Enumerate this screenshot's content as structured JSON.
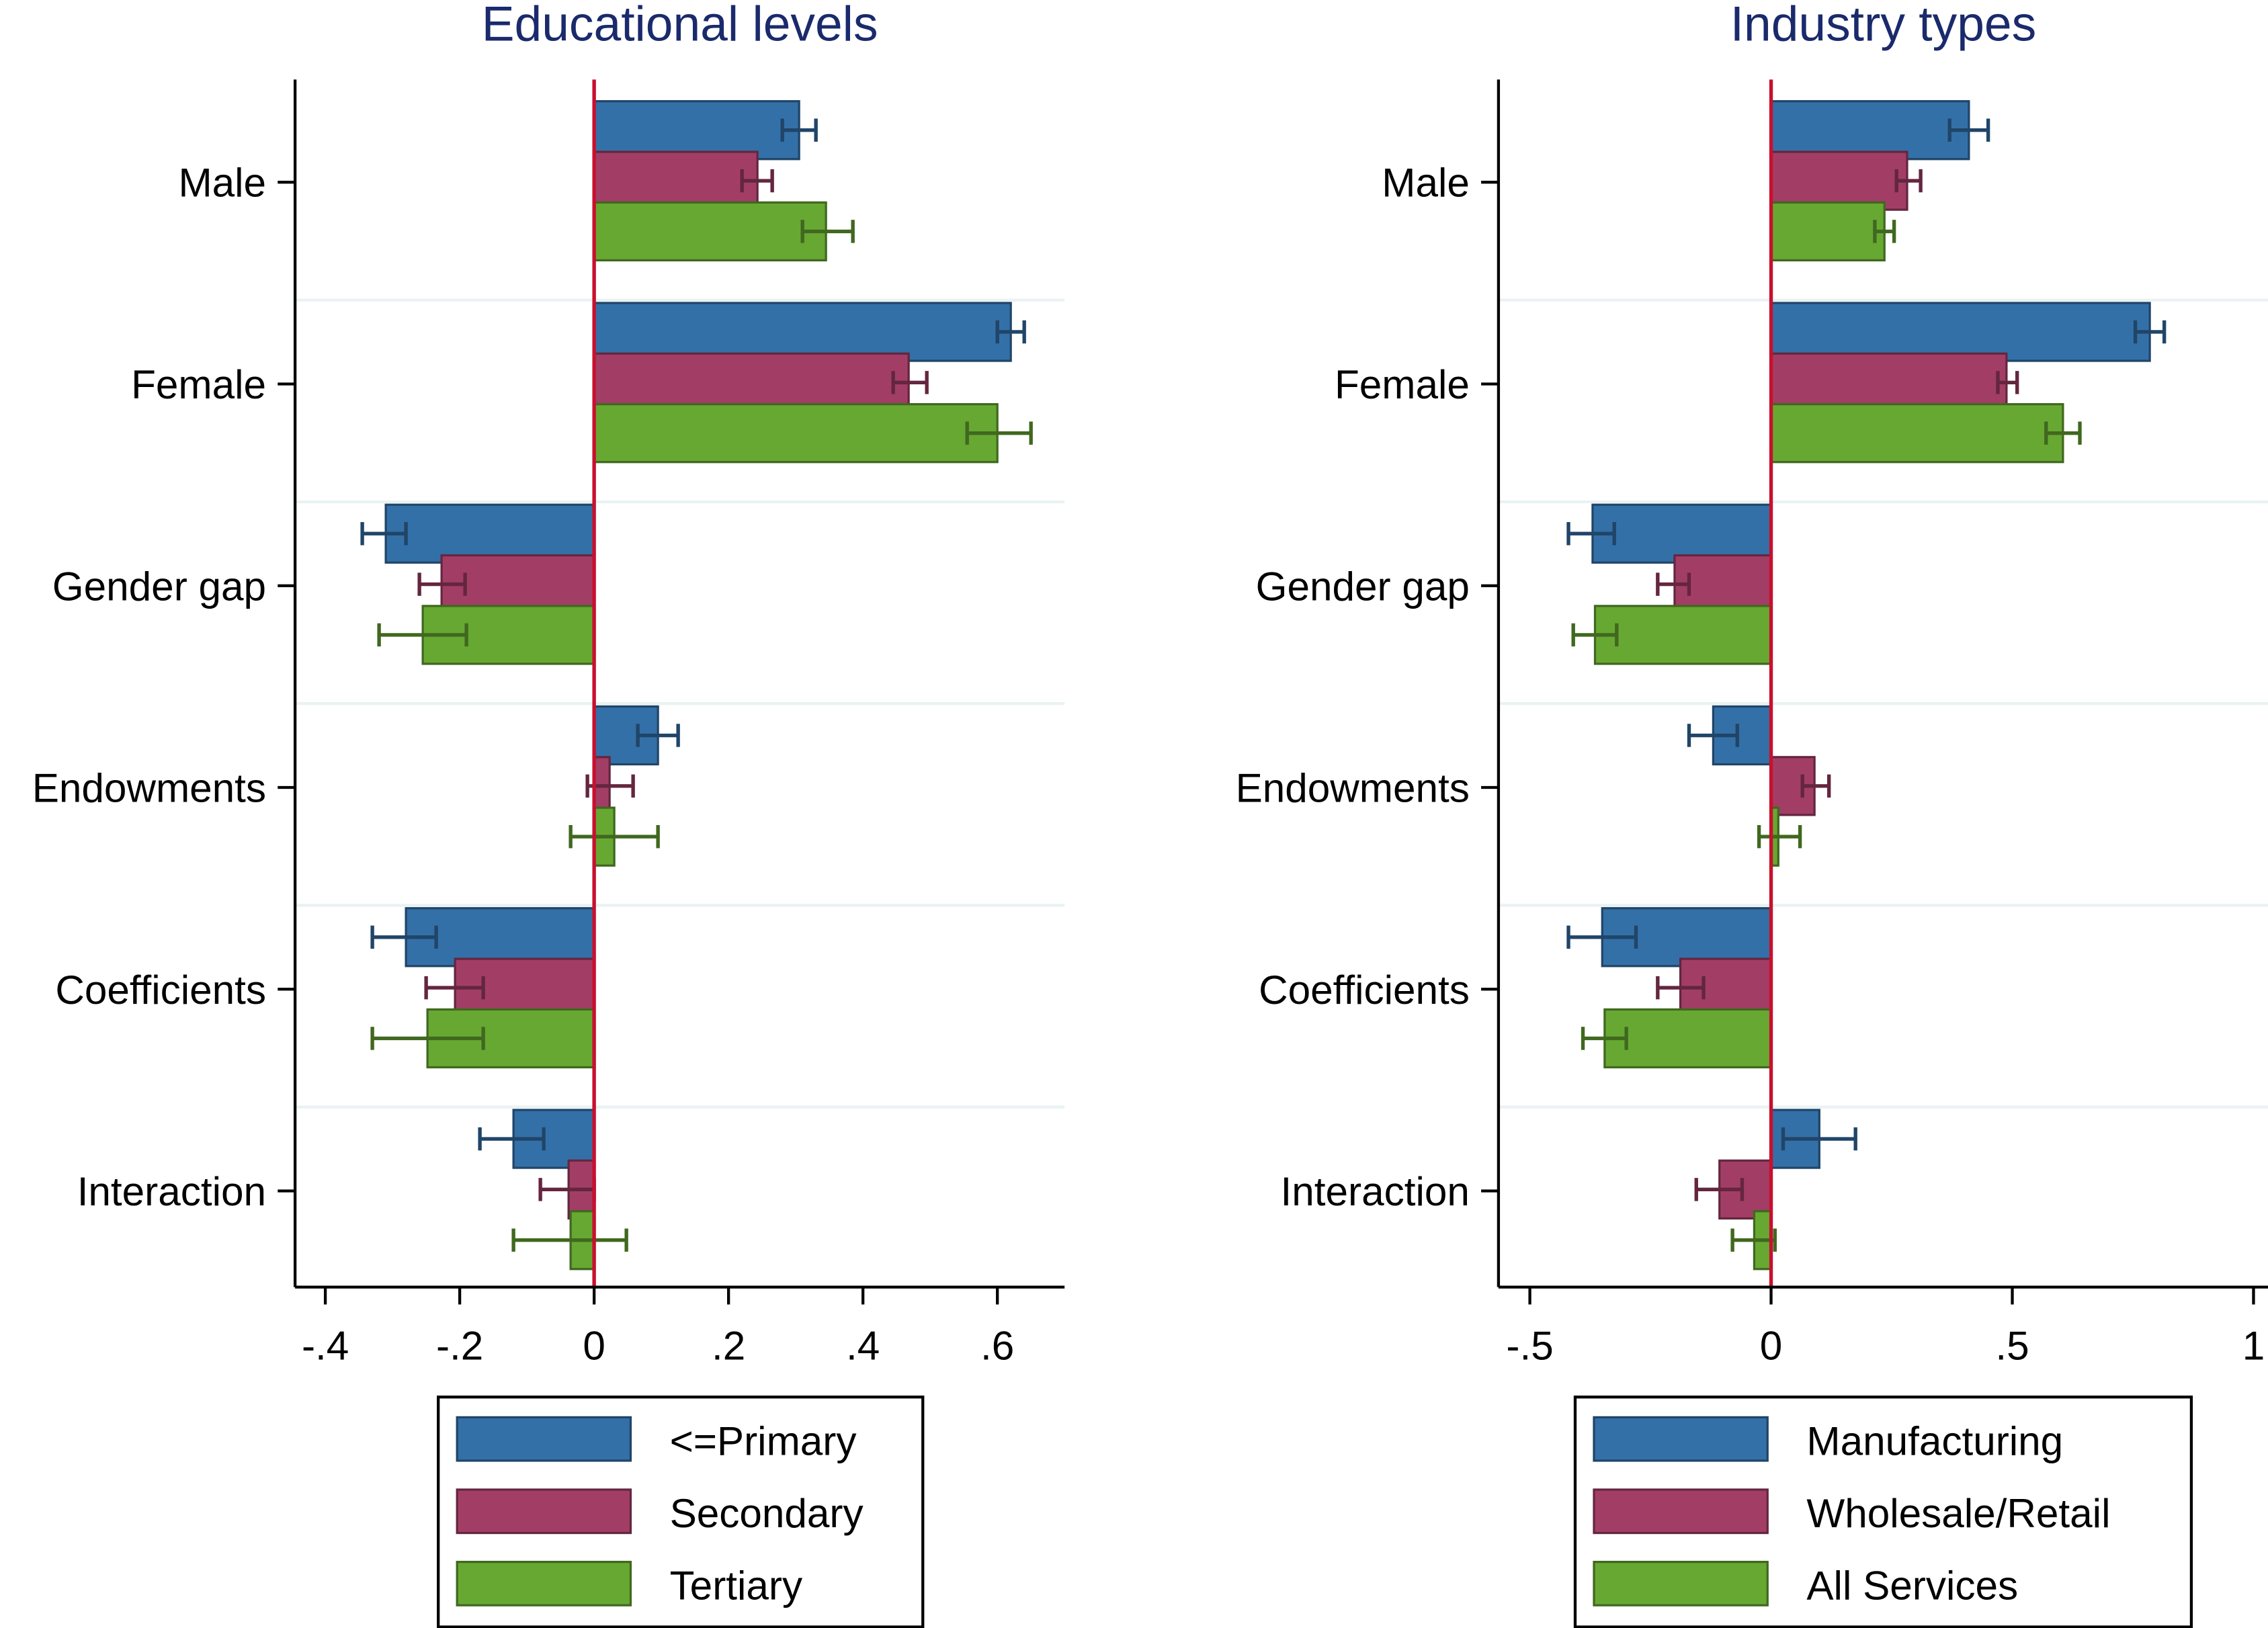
{
  "chart_data": [
    {
      "type": "bar",
      "orientation": "horizontal",
      "title": "Educational levels",
      "xlabel": "",
      "ylabel": "",
      "categories": [
        "Male",
        "Female",
        "Gender gap",
        "Endowments",
        "Coefficients",
        "Interaction"
      ],
      "xlim": [
        -0.445,
        0.7
      ],
      "xticks": [
        -0.4,
        -0.2,
        0,
        0.2,
        0.4,
        0.6
      ],
      "xtick_labels": [
        "-.4",
        "-.2",
        "0",
        ".2",
        ".4",
        ".6"
      ],
      "grid": "horizontal separators between categories",
      "legend_position": "bottom",
      "series": [
        {
          "name": "<=Primary",
          "color": "#3470a8",
          "values": [
            0.305,
            0.62,
            -0.31,
            0.095,
            -0.28,
            -0.12
          ],
          "ci": [
            [
              0.28,
              0.33
            ],
            [
              0.6,
              0.64
            ],
            [
              -0.345,
              -0.28
            ],
            [
              0.065,
              0.125
            ],
            [
              -0.33,
              -0.235
            ],
            [
              -0.17,
              -0.075
            ]
          ]
        },
        {
          "name": "Secondary",
          "color": "#a23e65",
          "values": [
            0.243,
            0.468,
            -0.227,
            0.023,
            -0.207,
            -0.038
          ],
          "ci": [
            [
              0.22,
              0.265
            ],
            [
              0.445,
              0.495
            ],
            [
              -0.26,
              -0.192
            ],
            [
              -0.01,
              0.058
            ],
            [
              -0.25,
              -0.165
            ],
            [
              -0.08,
              0.0
            ]
          ]
        },
        {
          "name": "Tertiary",
          "color": "#67a832",
          "values": [
            0.345,
            0.6,
            -0.255,
            0.03,
            -0.248,
            -0.035
          ],
          "ci": [
            [
              0.31,
              0.385
            ],
            [
              0.555,
              0.65
            ],
            [
              -0.32,
              -0.19
            ],
            [
              -0.035,
              0.095
            ],
            [
              -0.33,
              -0.165
            ],
            [
              -0.12,
              0.048
            ]
          ]
        }
      ]
    },
    {
      "type": "bar",
      "orientation": "horizontal",
      "title": "Industry types",
      "xlabel": "",
      "ylabel": "",
      "categories": [
        "Male",
        "Female",
        "Gender gap",
        "Endowments",
        "Coefficients",
        "Interaction"
      ],
      "xlim": [
        -0.565,
        1.03
      ],
      "xticks": [
        -0.5,
        0,
        0.5,
        1
      ],
      "xtick_labels": [
        "-.5",
        "0",
        ".5",
        "1"
      ],
      "grid": "horizontal separators between categories",
      "legend_position": "bottom",
      "series": [
        {
          "name": "Manufacturing",
          "color": "#3470a8",
          "values": [
            0.41,
            0.785,
            -0.37,
            -0.12,
            -0.35,
            0.1
          ],
          "ci": [
            [
              0.37,
              0.45
            ],
            [
              0.755,
              0.815
            ],
            [
              -0.42,
              -0.325
            ],
            [
              -0.17,
              -0.07
            ],
            [
              -0.42,
              -0.28
            ],
            [
              0.025,
              0.175
            ]
          ]
        },
        {
          "name": "Wholesale/Retail",
          "color": "#a23e65",
          "values": [
            0.282,
            0.488,
            -0.2,
            0.09,
            -0.188,
            -0.107
          ],
          "ci": [
            [
              0.26,
              0.31
            ],
            [
              0.47,
              0.51
            ],
            [
              -0.235,
              -0.17
            ],
            [
              0.065,
              0.12
            ],
            [
              -0.235,
              -0.14
            ],
            [
              -0.155,
              -0.06
            ]
          ]
        },
        {
          "name": "All Services",
          "color": "#67a832",
          "values": [
            0.235,
            0.605,
            -0.365,
            0.015,
            -0.345,
            -0.035
          ],
          "ci": [
            [
              0.215,
              0.255
            ],
            [
              0.57,
              0.64
            ],
            [
              -0.41,
              -0.32
            ],
            [
              -0.025,
              0.06
            ],
            [
              -0.39,
              -0.3
            ],
            [
              -0.08,
              0.008
            ]
          ]
        }
      ]
    }
  ]
}
